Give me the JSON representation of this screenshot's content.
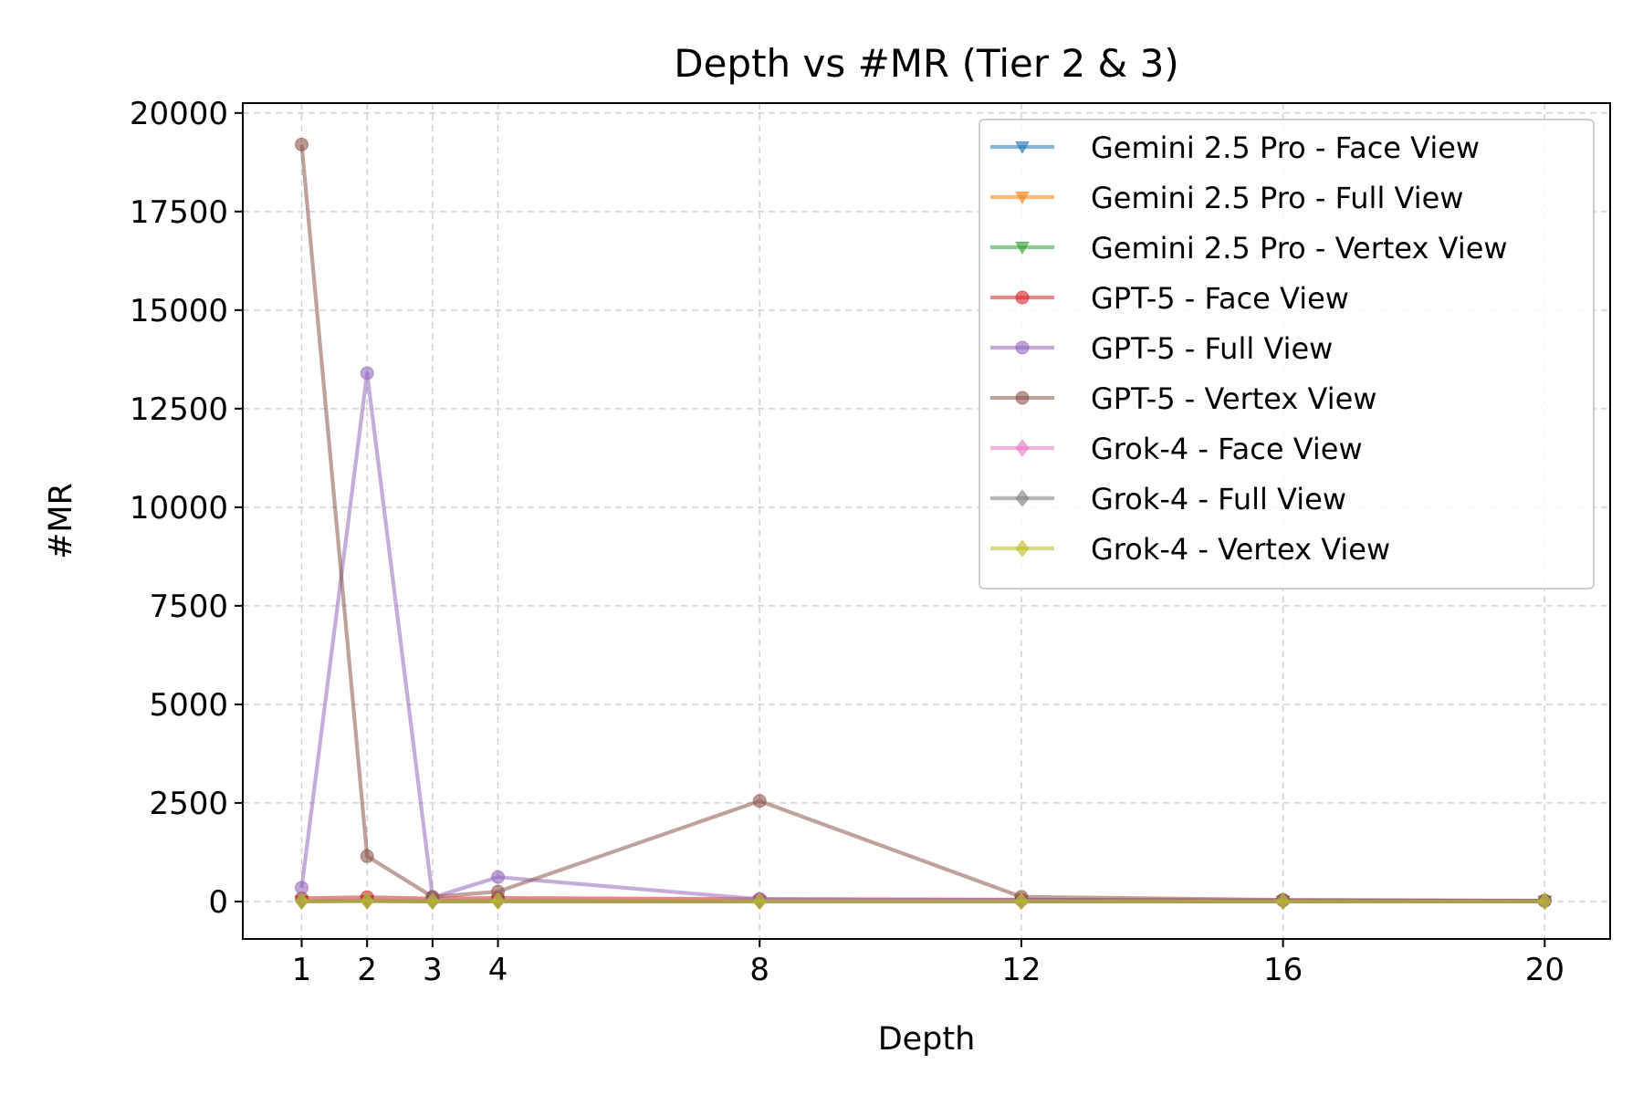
{
  "chart_data": {
    "type": "line",
    "title": "Depth vs #MR (Tier 2 & 3)",
    "xlabel": "Depth",
    "ylabel": "#MR",
    "xlim": [
      0.1,
      21.0
    ],
    "ylim": [
      -950,
      20250
    ],
    "xticks": [
      1,
      2,
      3,
      4,
      8,
      12,
      16,
      20
    ],
    "yticks": [
      0,
      2500,
      5000,
      7500,
      10000,
      12500,
      15000,
      17500,
      20000
    ],
    "grid": true,
    "legend_position": "top-right",
    "x": [
      1,
      2,
      3,
      4,
      8,
      12,
      16,
      20
    ],
    "series": [
      {
        "name": "Gemini 2.5 Pro - Face View",
        "color": "#1f77b4",
        "marker": "triangle-down",
        "values": [
          5,
          10,
          3,
          6,
          4,
          3,
          2,
          1
        ]
      },
      {
        "name": "Gemini 2.5 Pro - Full View",
        "color": "#ff7f0e",
        "marker": "triangle-down",
        "values": [
          8,
          15,
          4,
          9,
          6,
          4,
          3,
          2
        ]
      },
      {
        "name": "Gemini 2.5 Pro - Vertex View",
        "color": "#2ca02c",
        "marker": "triangle-down",
        "values": [
          6,
          12,
          4,
          7,
          5,
          3,
          2,
          1
        ]
      },
      {
        "name": "GPT-5 - Face View",
        "color": "#d62728",
        "marker": "circle",
        "values": [
          80,
          110,
          70,
          90,
          60,
          45,
          30,
          20
        ]
      },
      {
        "name": "GPT-5 - Full View",
        "color": "#9467bd",
        "marker": "circle",
        "values": [
          350,
          13400,
          100,
          620,
          60,
          40,
          30,
          15
        ]
      },
      {
        "name": "GPT-5 - Vertex View",
        "color": "#8c564b",
        "marker": "circle",
        "values": [
          19200,
          1150,
          120,
          250,
          2550,
          120,
          40,
          20
        ]
      },
      {
        "name": "Grok-4 - Face View",
        "color": "#e377c2",
        "marker": "diamond",
        "values": [
          10,
          14,
          8,
          12,
          6,
          5,
          4,
          3
        ]
      },
      {
        "name": "Grok-4 - Full View",
        "color": "#7f7f7f",
        "marker": "diamond",
        "values": [
          12,
          18,
          10,
          14,
          8,
          6,
          5,
          4
        ]
      },
      {
        "name": "Grok-4 - Vertex View",
        "color": "#bcbd22",
        "marker": "diamond",
        "values": [
          9,
          13,
          7,
          10,
          6,
          5,
          4,
          3
        ]
      }
    ]
  }
}
